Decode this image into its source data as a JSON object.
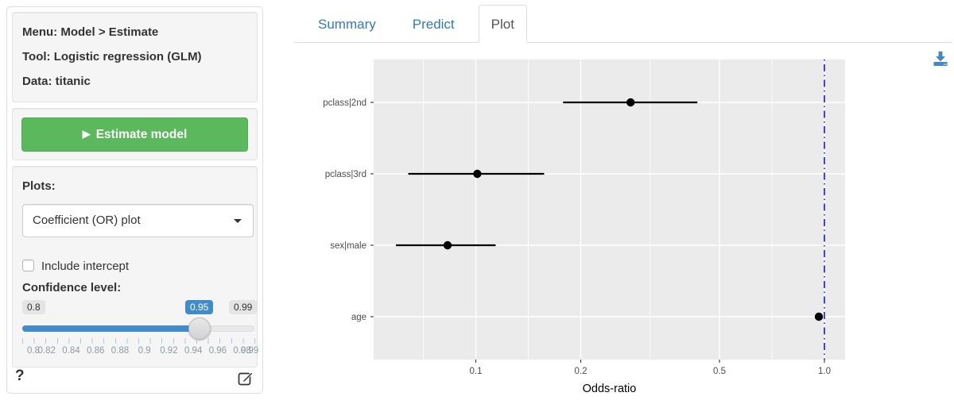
{
  "sidebar": {
    "info": {
      "menu_line": "Menu: Model > Estimate",
      "tool_line": "Tool: Logistic regression (GLM)",
      "data_line": "Data: titanic"
    },
    "estimate_button": {
      "label": "Estimate model",
      "icon": "play-icon",
      "play_glyph": "▶"
    },
    "plots_label": "Plots:",
    "plot_type_select": {
      "value": "Coefficient (OR) plot"
    },
    "include_intercept": {
      "label": "Include intercept",
      "checked": false
    },
    "confidence": {
      "label": "Confidence level:",
      "min_label": "0.8",
      "value_label": "0.95",
      "max_label": "0.99",
      "min": 0.8,
      "max": 0.99,
      "value": 0.95,
      "grid_labels": [
        "0.8",
        "0.82",
        "0.84",
        "0.86",
        "0.88",
        "0.9",
        "0.92",
        "0.94",
        "0.96",
        "0.98",
        "0.99"
      ]
    },
    "help_label": "?"
  },
  "main": {
    "tabs": [
      {
        "label": "Summary",
        "active": false
      },
      {
        "label": "Predict",
        "active": false
      },
      {
        "label": "Plot",
        "active": true
      }
    ],
    "download_icon": "download-icon"
  },
  "chart_data": {
    "type": "scatter",
    "subtype": "coefficient-odds-ratio-dot-interval",
    "title": "",
    "xlabel": "Odds-ratio",
    "ylabel": "",
    "categories": [
      "pclass|2nd",
      "pclass|3rd",
      "sex|male",
      "age"
    ],
    "series": [
      {
        "name": "odds_ratio",
        "values": [
          0.278,
          0.101,
          0.083,
          0.964
        ],
        "ci_low": [
          0.178,
          0.064,
          0.059,
          0.951
        ],
        "ci_high": [
          0.432,
          0.157,
          0.114,
          0.978
        ]
      }
    ],
    "x_scale": "log",
    "xlim": [
      0.051,
      1.15
    ],
    "x_ticks": [
      0.1,
      0.2,
      0.5,
      1.0
    ],
    "x_tick_labels": [
      "0.1",
      "0.2",
      "0.5",
      "1.0"
    ],
    "x_minor_gridlines": [
      0.0707,
      0.1414,
      0.3162,
      0.7071
    ],
    "refline": {
      "x": 1.0,
      "linetype": "dotdash",
      "color": "#2424e0"
    },
    "grid": "on",
    "legend": "none",
    "panel_bg": "#ebebeb",
    "grid_color": "#ffffff",
    "point_color": "#000000",
    "axis_text_color": "#4d4d4d"
  },
  "colors": {
    "button_green": "#5cb85c",
    "button_green_border": "#4cae4c",
    "slider_blue": "#428bca",
    "link_blue": "#337ab7",
    "well_bg": "#f5f5f5",
    "icon_blue": "#4288c5"
  }
}
